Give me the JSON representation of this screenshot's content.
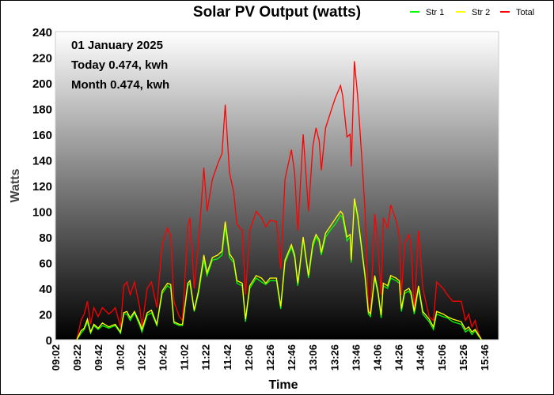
{
  "chart_data": {
    "type": "line",
    "title": "Solar PV Output (watts)",
    "xlabel": "Time",
    "ylabel": "Watts",
    "ylim": [
      0,
      240
    ],
    "yticks": [
      0,
      20,
      40,
      60,
      80,
      100,
      120,
      140,
      160,
      180,
      200,
      220,
      240
    ],
    "xlim_minutes_since_0902": [
      0,
      415
    ],
    "xtick_labels": [
      "09:02",
      "09:22",
      "09:42",
      "10:02",
      "10:22",
      "10:42",
      "11:02",
      "11:22",
      "11:42",
      "12:06",
      "12:26",
      "12:46",
      "13:06",
      "13:26",
      "13:46",
      "14:06",
      "14:26",
      "14:46",
      "15:06",
      "15:26",
      "15:46"
    ],
    "legend": {
      "placement": "top-right",
      "entries": [
        "Str 1",
        "Str 2",
        "Total"
      ]
    },
    "annotations": [
      "01 January 2025",
      "Today 0.474, kwh",
      "Month 0.474, kwh"
    ],
    "series_colors": {
      "Str 1": "#00ff00",
      "Str 2": "#ffff00",
      "Total": "#ff0000"
    },
    "points_columns": [
      "t",
      "Total",
      "Str 1",
      "Str 2"
    ],
    "points": [
      [
        20,
        0,
        0,
        0
      ],
      [
        24,
        15,
        5,
        7
      ],
      [
        27,
        20,
        8,
        9
      ],
      [
        30,
        30,
        14,
        16
      ],
      [
        33,
        12,
        5,
        6
      ],
      [
        36,
        25,
        11,
        12
      ],
      [
        40,
        18,
        8,
        9
      ],
      [
        44,
        25,
        11,
        13
      ],
      [
        50,
        20,
        9,
        10
      ],
      [
        53,
        22,
        10,
        11
      ],
      [
        56,
        25,
        11,
        12
      ],
      [
        61,
        10,
        5,
        6
      ],
      [
        64,
        42,
        20,
        21
      ],
      [
        67,
        45,
        20,
        22
      ],
      [
        70,
        35,
        15,
        17
      ],
      [
        74,
        45,
        21,
        22
      ],
      [
        79,
        25,
        11,
        13
      ],
      [
        81,
        10,
        6,
        8
      ],
      [
        86,
        40,
        19,
        21
      ],
      [
        90,
        45,
        21,
        23
      ],
      [
        95,
        25,
        11,
        12
      ],
      [
        100,
        75,
        36,
        38
      ],
      [
        105,
        87,
        42,
        44
      ],
      [
        108,
        80,
        40,
        43
      ],
      [
        111,
        30,
        13,
        14
      ],
      [
        116,
        18,
        11,
        12
      ],
      [
        119,
        15,
        11,
        12
      ],
      [
        124,
        88,
        42,
        44
      ],
      [
        126,
        95,
        44,
        46
      ],
      [
        130,
        40,
        22,
        23
      ],
      [
        134,
        75,
        36,
        38
      ],
      [
        139,
        134,
        62,
        66
      ],
      [
        142,
        100,
        50,
        52
      ],
      [
        147,
        125,
        62,
        64
      ],
      [
        152,
        137,
        63,
        66
      ],
      [
        156,
        145,
        66,
        69
      ],
      [
        159,
        183,
        88,
        92
      ],
      [
        163,
        130,
        64,
        67
      ],
      [
        167,
        115,
        60,
        62
      ],
      [
        170,
        90,
        44,
        46
      ],
      [
        175,
        85,
        42,
        44
      ],
      [
        178,
        35,
        14,
        16
      ],
      [
        182,
        85,
        40,
        42
      ],
      [
        188,
        100,
        48,
        50
      ],
      [
        193,
        95,
        45,
        48
      ],
      [
        197,
        88,
        43,
        44
      ],
      [
        201,
        93,
        46,
        48
      ],
      [
        207,
        92,
        46,
        48
      ],
      [
        211,
        55,
        24,
        26
      ],
      [
        215,
        125,
        60,
        62
      ],
      [
        221,
        148,
        72,
        74
      ],
      [
        224,
        130,
        64,
        66
      ],
      [
        227,
        85,
        42,
        44
      ],
      [
        232,
        160,
        78,
        80
      ],
      [
        237,
        100,
        48,
        50
      ],
      [
        241,
        150,
        72,
        75
      ],
      [
        244,
        165,
        80,
        82
      ],
      [
        247,
        155,
        76,
        78
      ],
      [
        249,
        132,
        66,
        68
      ],
      [
        253,
        165,
        80,
        83
      ],
      [
        258,
        178,
        86,
        89
      ],
      [
        262,
        188,
        90,
        94
      ],
      [
        267,
        198,
        97,
        100
      ],
      [
        269,
        190,
        95,
        98
      ],
      [
        273,
        158,
        77,
        80
      ],
      [
        276,
        160,
        80,
        82
      ],
      [
        277,
        135,
        60,
        62
      ],
      [
        280,
        217,
        108,
        110
      ],
      [
        283,
        190,
        95,
        97
      ],
      [
        287,
        140,
        68,
        70
      ],
      [
        290,
        100,
        48,
        50
      ],
      [
        293,
        25,
        20,
        22
      ],
      [
        295,
        20,
        18,
        20
      ],
      [
        299,
        98,
        48,
        50
      ],
      [
        302,
        75,
        36,
        38
      ],
      [
        305,
        35,
        17,
        19
      ],
      [
        307,
        95,
        42,
        44
      ],
      [
        311,
        87,
        40,
        42
      ],
      [
        314,
        105,
        48,
        50
      ],
      [
        319,
        93,
        46,
        48
      ],
      [
        322,
        80,
        44,
        46
      ],
      [
        324,
        35,
        22,
        24
      ],
      [
        327,
        75,
        36,
        38
      ],
      [
        331,
        82,
        38,
        40
      ],
      [
        333,
        75,
        35,
        37
      ],
      [
        336,
        20,
        20,
        22
      ],
      [
        340,
        85,
        40,
        42
      ],
      [
        344,
        40,
        20,
        22
      ],
      [
        350,
        18,
        14,
        16
      ],
      [
        354,
        15,
        8,
        10
      ],
      [
        357,
        45,
        20,
        22
      ],
      [
        363,
        40,
        18,
        20
      ],
      [
        367,
        35,
        17,
        18
      ],
      [
        372,
        30,
        14,
        16
      ],
      [
        376,
        30,
        13,
        15
      ],
      [
        380,
        30,
        12,
        14
      ],
      [
        384,
        15,
        6,
        8
      ],
      [
        387,
        20,
        8,
        10
      ],
      [
        390,
        10,
        4,
        6
      ],
      [
        393,
        15,
        7,
        8
      ],
      [
        396,
        5,
        3,
        4
      ],
      [
        399,
        0,
        0,
        0
      ]
    ]
  }
}
